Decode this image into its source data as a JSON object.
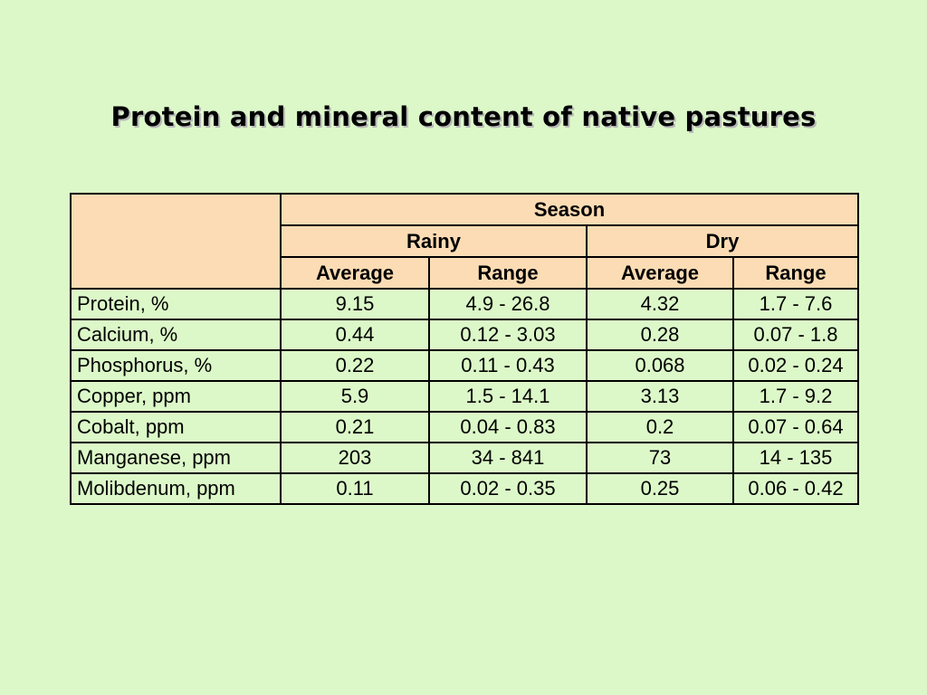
{
  "title": "Protein and mineral content of native pastures",
  "table": {
    "season_label": "Season",
    "seasons": [
      "Rainy",
      "Dry"
    ],
    "subheaders": [
      "Average",
      "Range",
      "Average",
      "Range"
    ],
    "rows": [
      {
        "label": "Protein, %",
        "values": [
          "9.15",
          "4.9 - 26.8",
          "4.32",
          "1.7 - 7.6"
        ]
      },
      {
        "label": "Calcium, %",
        "values": [
          "0.44",
          "0.12 - 3.03",
          "0.28",
          "0.07 - 1.8"
        ]
      },
      {
        "label": "Phosphorus, %",
        "values": [
          "0.22",
          "0.11 - 0.43",
          "0.068",
          "0.02 - 0.24"
        ]
      },
      {
        "label": "Copper, ppm",
        "values": [
          "5.9",
          "1.5 - 14.1",
          "3.13",
          "1.7 - 9.2"
        ]
      },
      {
        "label": "Cobalt, ppm",
        "values": [
          "0.21",
          "0.04 - 0.83",
          "0.2",
          "0.07 - 0.64"
        ]
      },
      {
        "label": "Manganese, ppm",
        "values": [
          "203",
          "34 - 841",
          "73",
          "14 - 135"
        ]
      },
      {
        "label": "Molibdenum, ppm",
        "values": [
          "0.11",
          "0.02 - 0.35",
          "0.25",
          "0.06 - 0.42"
        ]
      }
    ]
  },
  "colors": {
    "background": "#dcf8c8",
    "header_fill": "#fcdcb4",
    "border": "#000000"
  }
}
